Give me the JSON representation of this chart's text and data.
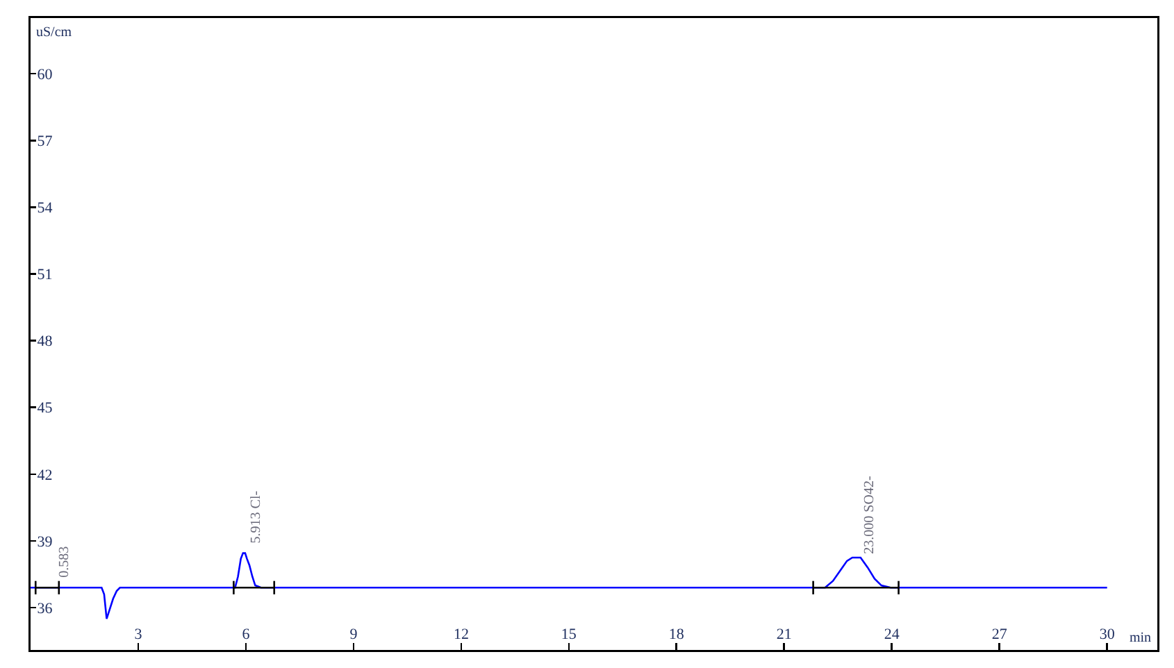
{
  "chart_data": {
    "type": "line",
    "xlabel": "min",
    "ylabel": "uS/cm",
    "xlim": [
      0,
      31.4
    ],
    "xticks": [
      3,
      6,
      9,
      12,
      15,
      18,
      21,
      24,
      27,
      30
    ],
    "ylim": [
      34.1,
      62.5
    ],
    "yticks": [
      36,
      39,
      42,
      45,
      48,
      51,
      54,
      57,
      60
    ],
    "grid": false,
    "series": [
      {
        "color": "#0000ff",
        "x": [
          0,
          1.98,
          2.05,
          2.12,
          2.2,
          2.3,
          2.4,
          2.49,
          5.7,
          5.78,
          5.86,
          5.92,
          5.98,
          6.03,
          6.1,
          6.18,
          6.26,
          6.35,
          6.42,
          22.14,
          22.36,
          22.62,
          22.75,
          22.9,
          23.13,
          23.33,
          23.52,
          23.71,
          23.97,
          30
        ],
        "values": [
          36.9,
          36.9,
          36.6,
          35.5,
          35.9,
          36.4,
          36.75,
          36.9,
          36.9,
          37.4,
          38.2,
          38.45,
          38.45,
          38.2,
          37.9,
          37.4,
          37.0,
          36.95,
          36.9,
          36.9,
          37.2,
          37.8,
          38.1,
          38.25,
          38.25,
          37.8,
          37.3,
          37.0,
          36.9,
          36.9
        ]
      },
      {
        "color": "#000000",
        "x": [
          0.14,
          0.79,
          3,
          5.66,
          6.79,
          15,
          21.81,
          24.19
        ],
        "values": [
          36.9,
          36.9,
          null,
          36.9,
          36.9,
          null,
          36.9,
          36.9
        ],
        "errors": [
          0.3,
          0.3,
          null,
          0.3,
          0.3,
          null,
          0.3,
          0.3
        ]
      }
    ],
    "annotations": [
      {
        "text": "0.583",
        "x": 0.68,
        "y": 37.2
      },
      {
        "text": "5.913 Cl-",
        "x": 6.01,
        "y": 38.75
      },
      {
        "text": "23.000 SO42-",
        "x": 23.1,
        "y": 38.3
      }
    ]
  }
}
